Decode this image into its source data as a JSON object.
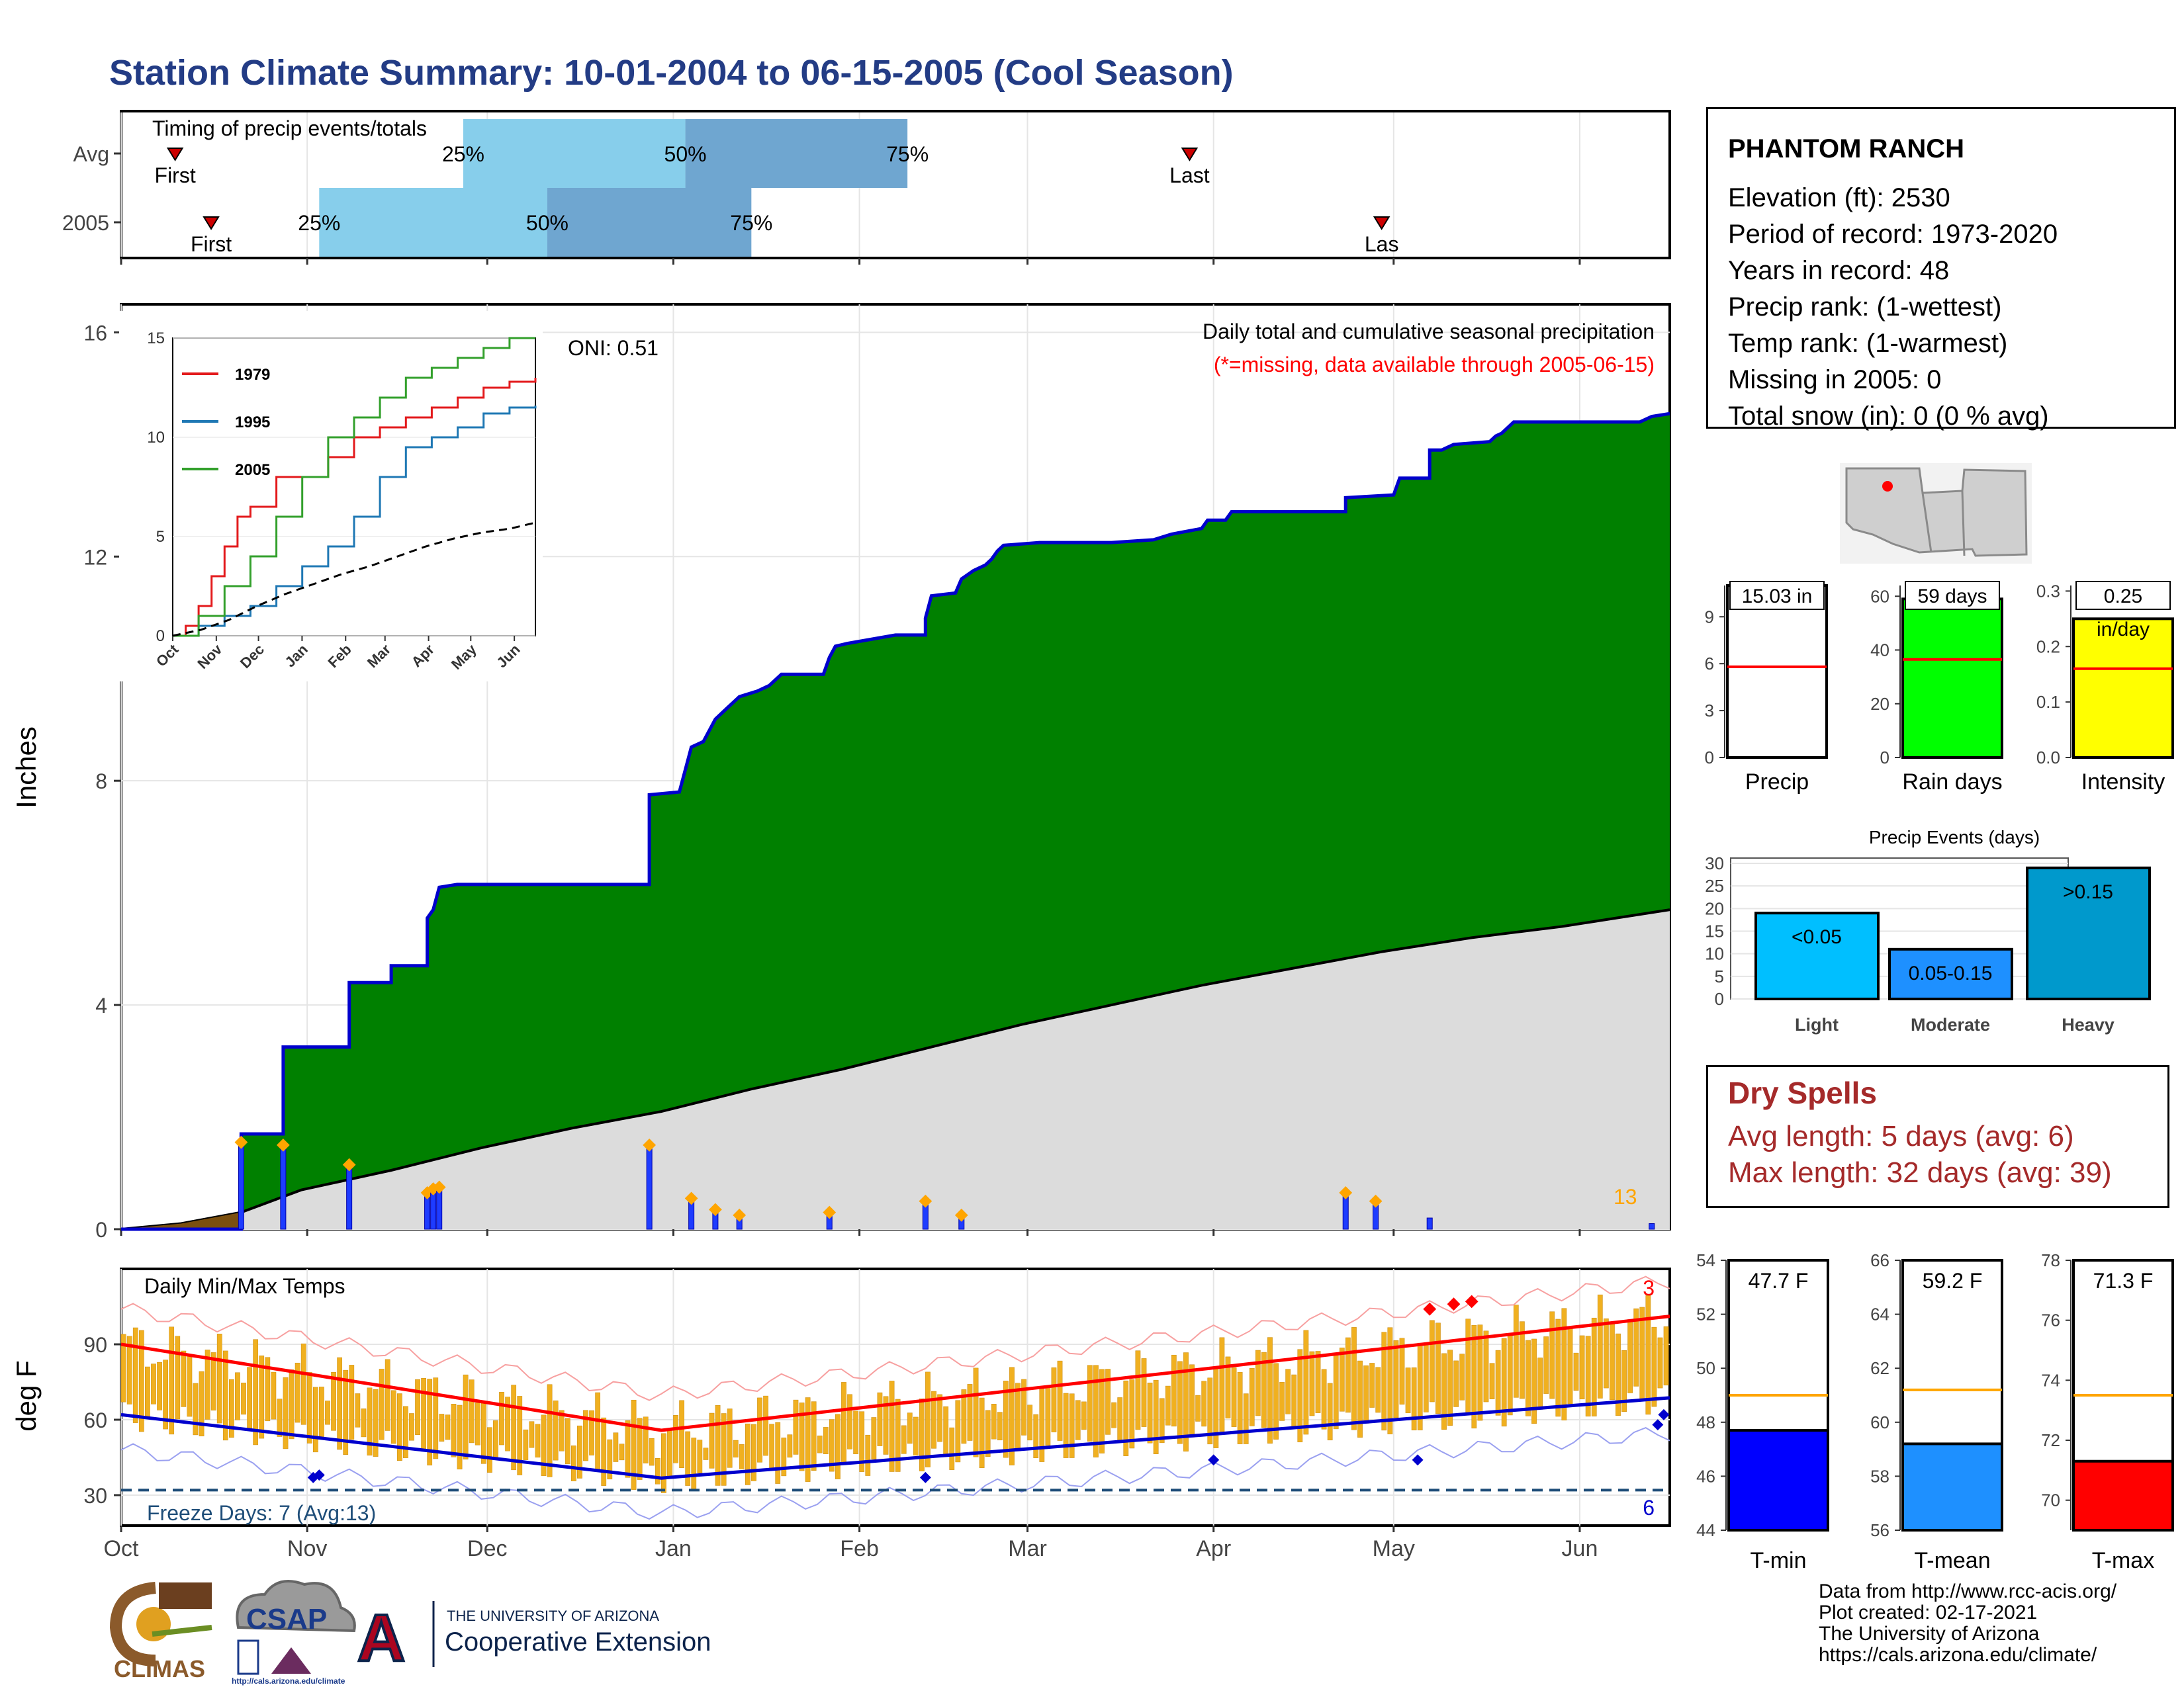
{
  "title": "Station Climate Summary: 10-01-2004 to 06-15-2005 (Cool Season)",
  "colors": {
    "title": "#233c85",
    "green": "#008000",
    "brown": "#7b4f0e",
    "gray_fill": "#dcdcdc",
    "blue_line": "#0000cd",
    "orange": "#ffa500",
    "light_blue": "#87ceeb",
    "mid_blue": "#6fa6d0",
    "temp_bar": "#f0b020",
    "red": "#ff0000",
    "dry_red": "#a52a2a"
  },
  "timing": {
    "title": "Timing of precip events/totals",
    "rows": [
      {
        "label": "Avg",
        "first": "First",
        "last": "Last",
        "q25": "25%",
        "q50": "50%",
        "q75": "75%",
        "first_doy": 9,
        "q25_doy": 57,
        "q50_doy": 94,
        "q75_doy": 131,
        "last_doy": 178
      },
      {
        "label": "2005",
        "first": "First",
        "last": "Las",
        "q25": "25%",
        "q50": "50%",
        "q75": "75%",
        "first_doy": 15,
        "q25_doy": 33,
        "q50_doy": 71,
        "q75_doy": 105,
        "last_doy": 210
      }
    ]
  },
  "precip": {
    "ylabel": "Inches",
    "yticks": [
      "0",
      "4",
      "8",
      "12",
      "16"
    ],
    "oni": "ONI: 0.51",
    "legend_title": "Daily total and cumulative seasonal precipitation",
    "legend_note": "(*=missing, data available through 2005-06-15)",
    "count_label": "13"
  },
  "inset": {
    "yticks": [
      "0",
      "5",
      "10",
      "15"
    ],
    "xticks": [
      "Oct",
      "Nov",
      "Dec",
      "Jan",
      "Feb",
      "Mar",
      "Apr",
      "May",
      "Jun"
    ],
    "legend": [
      {
        "name": "1979",
        "color": "#e31a1c"
      },
      {
        "name": "1995",
        "color": "#1f78b4"
      },
      {
        "name": "2005",
        "color": "#33a02c"
      }
    ]
  },
  "temps": {
    "title": "Daily Min/Max Temps",
    "ylabel": "deg F",
    "yticks": [
      "30",
      "60",
      "90"
    ],
    "freeze": "Freeze Days: 7 (Avg:13)",
    "hot_count": "3",
    "cold_count": "6"
  },
  "months": [
    "Oct",
    "Nov",
    "Dec",
    "Jan",
    "Feb",
    "Mar",
    "Apr",
    "May",
    "Jun"
  ],
  "station": {
    "name": "PHANTOM RANCH",
    "lines": [
      "Elevation (ft): 2530",
      "Period of record: 1973-2020",
      "Years in record: 48",
      "Precip rank:  (1-wettest)",
      "Temp rank:  (1-warmest)",
      "Missing in 2005: 0",
      "Total snow (in): 0 (0 % avg)"
    ]
  },
  "summary_bars": [
    {
      "label": "Precip",
      "value_label": "15.03 in",
      "value": 15.03,
      "avg": 5.8,
      "ymax": 11.0,
      "yticks": [
        "0",
        "3",
        "6",
        "9"
      ],
      "color": "#ffffff"
    },
    {
      "label": "Rain days",
      "value_label": "59 days",
      "value": 59,
      "avg": 36.5,
      "ymax": 64,
      "yticks": [
        "0",
        "20",
        "40",
        "60"
      ],
      "color": "#00ff00"
    },
    {
      "label": "Intensity",
      "value_label": "0.25",
      "value_unit": "in/day",
      "value": 0.25,
      "avg": 0.16,
      "ymax": 0.31,
      "yticks": [
        "0.0",
        "0.1",
        "0.2",
        "0.3"
      ],
      "color": "#ffff00"
    }
  ],
  "events": {
    "title": "Precip Events (days)",
    "yticks": [
      "0",
      "5",
      "10",
      "15",
      "20",
      "25",
      "30"
    ],
    "bars": [
      {
        "category": "Light",
        "label": "<0.05",
        "value": 19,
        "color": "#00bfff"
      },
      {
        "category": "Moderate",
        "label": "0.05-0.15",
        "value": 11,
        "color": "#1e90ff"
      },
      {
        "category": "Heavy",
        "label": ">0.15",
        "value": 29,
        "color": "#0099cc"
      }
    ]
  },
  "dry_spells": {
    "title": "Dry Spells",
    "avg": "Avg length: 5 days (avg: 6)",
    "max": "Max length: 32 days (avg: 39)"
  },
  "temp_bars": [
    {
      "label": "T-min",
      "value_label": "47.7 F",
      "value": 47.7,
      "avg": 49.0,
      "ymin": 44,
      "ymax": 54,
      "yticks": [
        "44",
        "46",
        "48",
        "50",
        "52",
        "54"
      ],
      "color": "#0000ff"
    },
    {
      "label": "T-mean",
      "value_label": "59.2 F",
      "value": 59.2,
      "avg": 61.2,
      "ymin": 56,
      "ymax": 66,
      "yticks": [
        "56",
        "58",
        "60",
        "62",
        "64",
        "66"
      ],
      "color": "#1e90ff"
    },
    {
      "label": "T-max",
      "value_label": "71.3 F",
      "value": 71.3,
      "avg": 73.5,
      "ymin": 69,
      "ymax": 78,
      "yticks": [
        "70",
        "72",
        "74",
        "76",
        "78"
      ],
      "color": "#ff0000"
    }
  ],
  "credits": [
    "Data from http://www.rcc-acis.org/",
    "Plot created: 02-17-2021",
    "The University of Arizona",
    "https://cals.arizona.edu/climate/"
  ],
  "logos": {
    "climas": "CLIMAS",
    "csap": "CSAP",
    "csap_url": "http://cals.arizona.edu/climate",
    "ua_top": "THE UNIVERSITY OF ARIZONA",
    "ua_bottom": "Cooperative Extension",
    "ua_letter": "A"
  },
  "chart_data": {
    "type": "area",
    "title": "Daily total and cumulative seasonal precipitation",
    "ylabel": "Inches",
    "ylim": [
      0,
      16.5
    ],
    "x_range_days": [
      0,
      258
    ],
    "cumulative_2005": [
      [
        0,
        0
      ],
      [
        20,
        0
      ],
      [
        20,
        1.7
      ],
      [
        27,
        1.7
      ],
      [
        27,
        3.25
      ],
      [
        38,
        3.25
      ],
      [
        38,
        4.4
      ],
      [
        45,
        4.4
      ],
      [
        45,
        4.7
      ],
      [
        51,
        4.7
      ],
      [
        51,
        5.55
      ],
      [
        52,
        5.7
      ],
      [
        53,
        6.1
      ],
      [
        56,
        6.15
      ],
      [
        88,
        6.15
      ],
      [
        88,
        7.75
      ],
      [
        93,
        7.8
      ],
      [
        94,
        8.2
      ],
      [
        95,
        8.6
      ],
      [
        97,
        8.7
      ],
      [
        99,
        9.1
      ],
      [
        100,
        9.2
      ],
      [
        101,
        9.3
      ],
      [
        102,
        9.4
      ],
      [
        103,
        9.5
      ],
      [
        106,
        9.6
      ],
      [
        108,
        9.7
      ],
      [
        110,
        9.9
      ],
      [
        117,
        9.9
      ],
      [
        118,
        10.2
      ],
      [
        119,
        10.4
      ],
      [
        121,
        10.45
      ],
      [
        129,
        10.6
      ],
      [
        134,
        10.6
      ],
      [
        134,
        10.9
      ],
      [
        135,
        11.3
      ],
      [
        139,
        11.35
      ],
      [
        140,
        11.6
      ],
      [
        142,
        11.75
      ],
      [
        144,
        11.85
      ],
      [
        145,
        11.95
      ],
      [
        146,
        12.1
      ],
      [
        147,
        12.2
      ],
      [
        153,
        12.25
      ],
      [
        165,
        12.25
      ],
      [
        172,
        12.3
      ],
      [
        175,
        12.4
      ],
      [
        180,
        12.5
      ],
      [
        181,
        12.65
      ],
      [
        184,
        12.65
      ],
      [
        185,
        12.8
      ],
      [
        204,
        12.8
      ],
      [
        204,
        13.05
      ],
      [
        212,
        13.1
      ],
      [
        213,
        13.4
      ],
      [
        218,
        13.4
      ],
      [
        218,
        13.9
      ],
      [
        220,
        13.9
      ],
      [
        222,
        14.0
      ],
      [
        228,
        14.05
      ],
      [
        229,
        14.15
      ],
      [
        230,
        14.2
      ],
      [
        232,
        14.4
      ],
      [
        253,
        14.4
      ],
      [
        255,
        14.5
      ],
      [
        258,
        14.55
      ]
    ],
    "cumulative_avg": [
      [
        0,
        0
      ],
      [
        10,
        0.1
      ],
      [
        20,
        0.3
      ],
      [
        30,
        0.7
      ],
      [
        45,
        1.05
      ],
      [
        60,
        1.45
      ],
      [
        75,
        1.8
      ],
      [
        90,
        2.1
      ],
      [
        105,
        2.5
      ],
      [
        120,
        2.85
      ],
      [
        135,
        3.25
      ],
      [
        150,
        3.65
      ],
      [
        165,
        4.0
      ],
      [
        180,
        4.35
      ],
      [
        195,
        4.65
      ],
      [
        210,
        4.95
      ],
      [
        225,
        5.2
      ],
      [
        240,
        5.4
      ],
      [
        258,
        5.7
      ]
    ],
    "daily_events": [
      [
        20,
        1.55
      ],
      [
        27,
        1.5
      ],
      [
        38,
        1.15
      ],
      [
        51,
        0.65
      ],
      [
        52,
        0.72
      ],
      [
        53,
        0.75
      ],
      [
        88,
        1.5
      ],
      [
        95,
        0.55
      ],
      [
        99,
        0.35
      ],
      [
        103,
        0.25
      ],
      [
        118,
        0.3
      ],
      [
        134,
        0.5
      ],
      [
        140,
        0.25
      ],
      [
        204,
        0.65
      ],
      [
        209,
        0.5
      ],
      [
        218,
        0.2
      ],
      [
        255,
        0.1
      ]
    ],
    "series": [
      {
        "name": "1979",
        "values": [
          [
            0,
            0
          ],
          [
            5,
            0.5
          ],
          [
            10,
            1.5
          ],
          [
            15,
            3
          ],
          [
            20,
            4.5
          ],
          [
            25,
            6
          ],
          [
            30,
            6.5
          ],
          [
            40,
            8
          ],
          [
            50,
            8
          ],
          [
            60,
            9
          ],
          [
            70,
            10
          ],
          [
            80,
            10.5
          ],
          [
            90,
            11
          ],
          [
            100,
            11.5
          ],
          [
            110,
            12
          ],
          [
            120,
            12.5
          ],
          [
            130,
            12.8
          ],
          [
            140,
            13
          ]
        ]
      },
      {
        "name": "1995",
        "values": [
          [
            0,
            0
          ],
          [
            10,
            0.5
          ],
          [
            20,
            1
          ],
          [
            30,
            1.5
          ],
          [
            40,
            2.5
          ],
          [
            50,
            3.5
          ],
          [
            60,
            4.5
          ],
          [
            70,
            6
          ],
          [
            80,
            8
          ],
          [
            90,
            9.5
          ],
          [
            100,
            10
          ],
          [
            110,
            10.5
          ],
          [
            120,
            11.2
          ],
          [
            130,
            11.5
          ],
          [
            140,
            11.6
          ]
        ]
      },
      {
        "name": "2005",
        "values": [
          [
            0,
            0
          ],
          [
            10,
            1
          ],
          [
            20,
            2.5
          ],
          [
            30,
            4
          ],
          [
            40,
            6
          ],
          [
            50,
            8
          ],
          [
            60,
            10
          ],
          [
            70,
            11
          ],
          [
            80,
            12
          ],
          [
            90,
            13
          ],
          [
            100,
            13.5
          ],
          [
            110,
            14
          ],
          [
            120,
            14.5
          ],
          [
            130,
            15
          ],
          [
            140,
            15
          ]
        ]
      }
    ]
  }
}
